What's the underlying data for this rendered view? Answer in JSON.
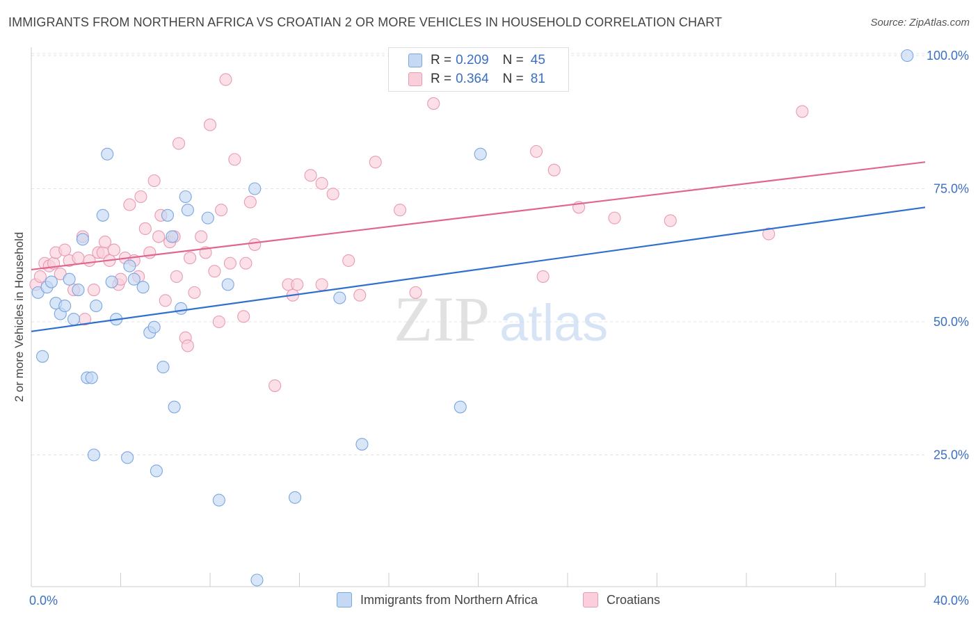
{
  "title": "IMMIGRANTS FROM NORTHERN AFRICA VS CROATIAN 2 OR MORE VEHICLES IN HOUSEHOLD CORRELATION CHART",
  "source": "Source: ZipAtlas.com",
  "watermark": {
    "zip": "ZIP",
    "atlas": "atlas"
  },
  "legend_top": [
    {
      "r_label": "R =",
      "r_value": "0.209",
      "n_label": "N =",
      "n_value": "45"
    },
    {
      "r_label": "R =",
      "r_value": "0.364",
      "n_label": "N =",
      "n_value": "81"
    }
  ],
  "legend_bottom": [
    {
      "label": "Immigrants from Northern Africa"
    },
    {
      "label": "Croatians"
    }
  ],
  "colors": {
    "blue_fill": "#c5d9f5",
    "blue_stroke": "#7aa6e0",
    "blue_line": "#2f6fce",
    "pink_fill": "#f9cfdc",
    "pink_stroke": "#e99ab3",
    "pink_line": "#e0658f",
    "tick_text": "#3a6fc4",
    "grid": "#e3e3e3"
  },
  "chart_data": {
    "type": "scatter",
    "xlabel": "",
    "ylabel": "2 or more Vehicles in Household",
    "xlim": [
      0,
      40
    ],
    "ylim": [
      0,
      102
    ],
    "x_tick_labels": [
      {
        "value": 0,
        "label": "0.0%"
      },
      {
        "value": 40,
        "label": "40.0%"
      }
    ],
    "y_tick_labels": [
      {
        "value": 25,
        "label": "25.0%"
      },
      {
        "value": 50,
        "label": "50.0%"
      },
      {
        "value": 75,
        "label": "75.0%"
      },
      {
        "value": 100,
        "label": "100.0%"
      }
    ],
    "series": [
      {
        "name": "Immigrants from Northern Africa",
        "trend": [
          [
            0,
            48.2
          ],
          [
            40,
            71.5
          ]
        ],
        "points": [
          [
            0.3,
            55.5
          ],
          [
            0.5,
            43.5
          ],
          [
            0.7,
            56.5
          ],
          [
            0.9,
            57.5
          ],
          [
            1.1,
            53.5
          ],
          [
            1.3,
            51.5
          ],
          [
            1.5,
            53
          ],
          [
            1.7,
            58
          ],
          [
            1.9,
            50.5
          ],
          [
            2.1,
            56
          ],
          [
            2.3,
            65.5
          ],
          [
            2.5,
            39.5
          ],
          [
            2.7,
            39.5
          ],
          [
            2.8,
            25
          ],
          [
            2.9,
            53
          ],
          [
            3.2,
            70
          ],
          [
            3.4,
            81.5
          ],
          [
            3.6,
            57.5
          ],
          [
            3.8,
            50.5
          ],
          [
            4.3,
            24.5
          ],
          [
            4.4,
            60.5
          ],
          [
            4.6,
            58
          ],
          [
            5.0,
            56.5
          ],
          [
            5.3,
            48
          ],
          [
            5.5,
            49
          ],
          [
            5.6,
            22
          ],
          [
            5.9,
            41.5
          ],
          [
            6.1,
            70
          ],
          [
            6.3,
            66
          ],
          [
            6.4,
            34
          ],
          [
            6.7,
            52.5
          ],
          [
            6.9,
            73.5
          ],
          [
            7.0,
            71
          ],
          [
            7.9,
            69.5
          ],
          [
            8.4,
            16.5
          ],
          [
            8.8,
            57
          ],
          [
            10.0,
            75
          ],
          [
            10.1,
            1.5
          ],
          [
            11.8,
            17
          ],
          [
            13.8,
            54.5
          ],
          [
            14.8,
            27
          ],
          [
            19.2,
            34
          ],
          [
            20.1,
            81.5
          ],
          [
            39.2,
            100
          ]
        ]
      },
      {
        "name": "Croatians",
        "trend": [
          [
            0,
            59.8
          ],
          [
            40,
            80
          ]
        ],
        "points": [
          [
            0.2,
            57
          ],
          [
            0.4,
            58.5
          ],
          [
            0.6,
            61
          ],
          [
            0.8,
            60.5
          ],
          [
            1.0,
            61
          ],
          [
            1.1,
            63
          ],
          [
            1.3,
            59
          ],
          [
            1.5,
            63.5
          ],
          [
            1.7,
            61.5
          ],
          [
            1.9,
            56
          ],
          [
            2.1,
            62
          ],
          [
            2.3,
            66
          ],
          [
            2.4,
            50.5
          ],
          [
            2.6,
            61.5
          ],
          [
            2.8,
            56
          ],
          [
            3.0,
            63
          ],
          [
            3.2,
            63
          ],
          [
            3.3,
            65
          ],
          [
            3.5,
            61.5
          ],
          [
            3.7,
            63.5
          ],
          [
            3.9,
            57
          ],
          [
            4.0,
            58
          ],
          [
            4.2,
            62
          ],
          [
            4.4,
            72
          ],
          [
            4.6,
            61.5
          ],
          [
            4.8,
            58.5
          ],
          [
            4.9,
            73.5
          ],
          [
            5.1,
            67.5
          ],
          [
            5.3,
            63
          ],
          [
            5.5,
            76.5
          ],
          [
            5.7,
            66
          ],
          [
            5.8,
            70
          ],
          [
            6.0,
            54
          ],
          [
            6.2,
            65
          ],
          [
            6.4,
            66
          ],
          [
            6.5,
            58.5
          ],
          [
            6.6,
            83.5
          ],
          [
            6.9,
            47
          ],
          [
            7.0,
            45.5
          ],
          [
            7.1,
            62
          ],
          [
            7.3,
            55.5
          ],
          [
            7.6,
            66
          ],
          [
            7.8,
            63
          ],
          [
            8.0,
            87
          ],
          [
            8.2,
            59.5
          ],
          [
            8.4,
            50
          ],
          [
            8.5,
            71
          ],
          [
            8.7,
            95.5
          ],
          [
            8.9,
            61
          ],
          [
            9.1,
            80.5
          ],
          [
            9.5,
            51
          ],
          [
            9.6,
            61
          ],
          [
            9.8,
            72.5
          ],
          [
            10.0,
            64.5
          ],
          [
            10.9,
            38
          ],
          [
            11.5,
            57
          ],
          [
            11.7,
            55
          ],
          [
            11.9,
            57
          ],
          [
            12.5,
            77.5
          ],
          [
            13.0,
            76
          ],
          [
            13.0,
            57
          ],
          [
            13.5,
            74
          ],
          [
            14.2,
            61.5
          ],
          [
            14.7,
            55
          ],
          [
            15.4,
            80
          ],
          [
            16.5,
            71
          ],
          [
            17.2,
            55.5
          ],
          [
            18.0,
            91
          ],
          [
            22.6,
            82
          ],
          [
            22.9,
            58.5
          ],
          [
            23.4,
            78.5
          ],
          [
            24.5,
            71.5
          ],
          [
            26.1,
            69.5
          ],
          [
            28.6,
            69
          ],
          [
            33.0,
            66.5
          ],
          [
            34.5,
            89.5
          ]
        ]
      }
    ]
  }
}
